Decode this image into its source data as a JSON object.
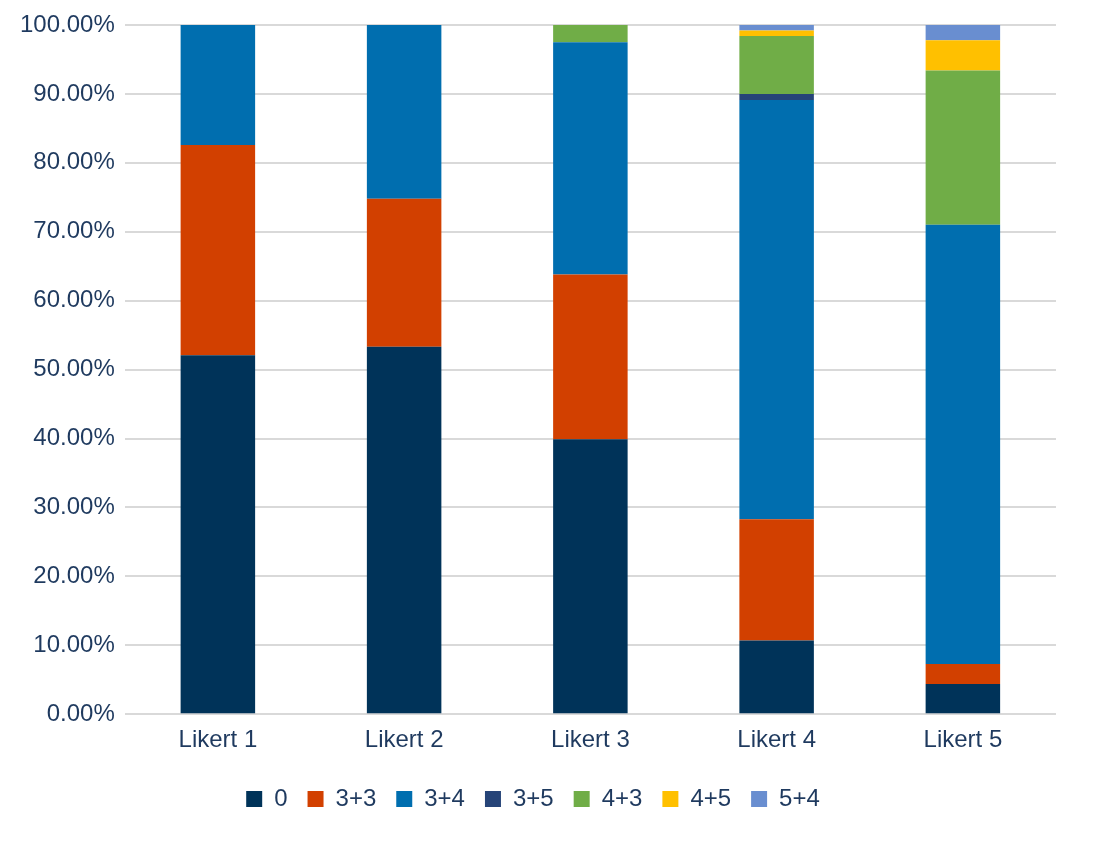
{
  "chart_data": {
    "type": "bar",
    "stacked": true,
    "categories": [
      "Likert 1",
      "Likert 2",
      "Likert 3",
      "Likert 4",
      "Likert 5"
    ],
    "series": [
      {
        "name": "0",
        "color": "#003359",
        "values": [
          52.1,
          53.3,
          39.9,
          10.7,
          4.4
        ]
      },
      {
        "name": "3+3",
        "color": "#d24000",
        "values": [
          30.5,
          21.5,
          23.9,
          17.6,
          2.9
        ]
      },
      {
        "name": "3+4",
        "color": "#006eaf",
        "values": [
          17.4,
          25.2,
          33.7,
          60.8,
          63.7
        ]
      },
      {
        "name": "3+5",
        "color": "#264478",
        "values": [
          0,
          0,
          0,
          0.9,
          0
        ]
      },
      {
        "name": "4+3",
        "color": "#70ad47",
        "values": [
          0,
          0,
          2.5,
          8.4,
          22.4
        ]
      },
      {
        "name": "4+5",
        "color": "#ffc000",
        "values": [
          0,
          0,
          0,
          0.8,
          4.4
        ]
      },
      {
        "name": "5+4",
        "color": "#698ed0",
        "values": [
          0,
          0,
          0,
          0.8,
          2.2
        ]
      }
    ],
    "ylim": [
      0,
      100
    ],
    "yticks": [
      {
        "value": 0,
        "label": "0.00%"
      },
      {
        "value": 10,
        "label": "10.00%"
      },
      {
        "value": 20,
        "label": "20.00%"
      },
      {
        "value": 30,
        "label": "30.00%"
      },
      {
        "value": 40,
        "label": "40.00%"
      },
      {
        "value": 50,
        "label": "50.00%"
      },
      {
        "value": 60,
        "label": "60.00%"
      },
      {
        "value": 70,
        "label": "70.00%"
      },
      {
        "value": 80,
        "label": "80.00%"
      },
      {
        "value": 90,
        "label": "90.00%"
      },
      {
        "value": 100,
        "label": "100.00%"
      }
    ],
    "grid": "y",
    "legend": "bottom"
  }
}
